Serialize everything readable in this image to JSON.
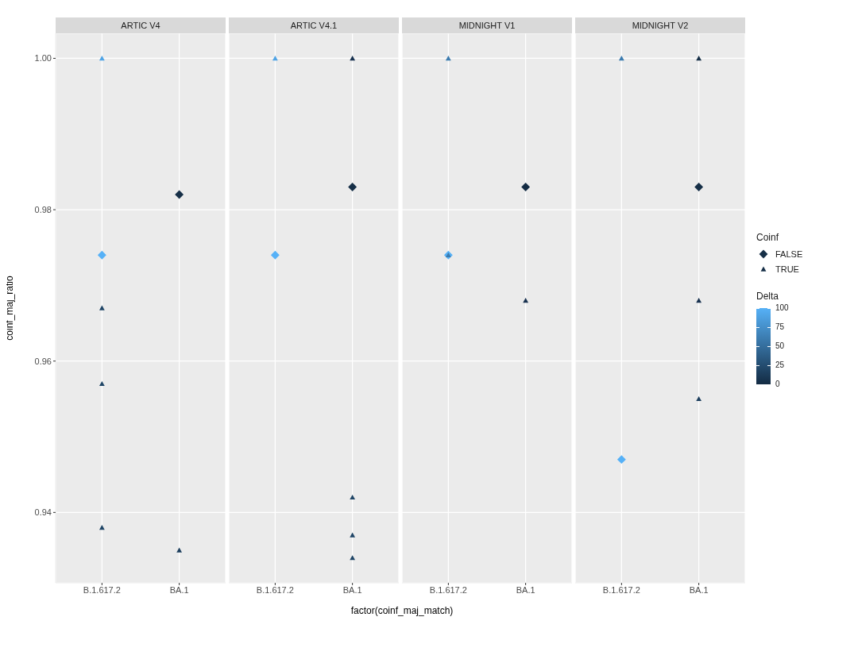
{
  "chart_data": [
    {
      "type": "scatter",
      "title": "ARTIC V4",
      "ylabel": "coinf_maj_ratio",
      "categories": [
        "B.1.617.2",
        "BA.1"
      ],
      "ylim": [
        0.9307,
        1.0033
      ],
      "yticks": [
        0.94,
        0.96,
        0.98,
        {
          "value": 1,
          "label": "1.00"
        }
      ],
      "grid": true,
      "series": [
        {
          "marker": "diamond",
          "x": [
            "BA.1",
            "B.1.617.2"
          ],
          "values": [
            0.982,
            0.974
          ],
          "colors": [
            "#162f47",
            "#56b1f7"
          ]
        },
        {
          "marker": "triangle",
          "x": [
            "B.1.617.2",
            "B.1.617.2",
            "B.1.617.2",
            "B.1.617.2",
            "BA.1"
          ],
          "values": [
            1,
            0.967,
            0.957,
            0.938,
            0.935
          ],
          "colors": [
            "#50a4e5",
            "#204667",
            "#204667",
            "#204667",
            "#1d3f5e"
          ]
        }
      ]
    },
    {
      "type": "scatter",
      "title": "ARTIC V4.1",
      "xlabel": "factor(coinf_maj_match)",
      "categories": [
        "B.1.617.2",
        "BA.1"
      ],
      "ylim": [
        0.9307,
        1.0033
      ],
      "yticks": [
        0.94,
        0.96,
        0.98,
        1
      ],
      "grid": true,
      "tick_labels": "x",
      "series": [
        {
          "marker": "diamond",
          "x": [
            "BA.1",
            "B.1.617.2"
          ],
          "values": [
            0.983,
            0.974
          ],
          "colors": [
            "#162f47",
            "#56b1f7"
          ]
        },
        {
          "marker": "triangle",
          "x": [
            "B.1.617.2",
            "BA.1",
            "BA.1",
            "BA.1",
            "BA.1"
          ],
          "values": [
            1,
            1,
            0.942,
            0.937,
            0.934
          ],
          "colors": [
            "#50a4e5",
            "#183250",
            "#204667",
            "#204667",
            "#204667"
          ]
        }
      ]
    },
    {
      "type": "scatter",
      "title": "MIDNIGHT V1",
      "categories": [
        "B.1.617.2",
        "BA.1"
      ],
      "ylim": [
        0.9307,
        1.0033
      ],
      "yticks": [
        0.94,
        0.96,
        0.98,
        1
      ],
      "grid": true,
      "tick_labels": "x",
      "series": [
        {
          "marker": "diamond",
          "x": [
            "BA.1",
            "B.1.617.2"
          ],
          "values": [
            0.983,
            0.974
          ],
          "colors": [
            "#132b43",
            "#56b1f7"
          ]
        },
        {
          "marker": "triangle",
          "x": [
            "B.1.617.2",
            "B.1.617.2",
            "BA.1"
          ],
          "values": [
            1,
            0.974,
            0.968
          ],
          "colors": [
            "#3b7baf",
            "#3b7baf",
            "#183250"
          ]
        }
      ]
    },
    {
      "type": "scatter",
      "title": "MIDNIGHT V2",
      "categories": [
        "B.1.617.2",
        "BA.1"
      ],
      "ylim": [
        0.9307,
        1.0033
      ],
      "yticks": [
        0.94,
        0.96,
        0.98,
        1
      ],
      "grid": true,
      "tick_labels": "x",
      "legend": "right",
      "legend_title": "Coinf",
      "clabel": "Delta",
      "clim": [
        0,
        100
      ],
      "cticks": [
        0,
        25,
        50,
        75,
        100
      ],
      "series": [
        {
          "name": "FALSE",
          "marker": "diamond",
          "x": [
            "BA.1",
            "B.1.617.2"
          ],
          "values": [
            0.983,
            0.947
          ],
          "colors": [
            "#162f47",
            "#56b1f7"
          ]
        },
        {
          "name": "TRUE",
          "marker": "triangle",
          "x": [
            "BA.1",
            "B.1.617.2",
            "BA.1",
            "BA.1"
          ],
          "values": [
            1,
            1,
            0.968,
            0.955
          ],
          "colors": [
            "#162f47",
            "#3b7baf",
            "#183250",
            "#1d3f5e"
          ]
        }
      ]
    }
  ]
}
